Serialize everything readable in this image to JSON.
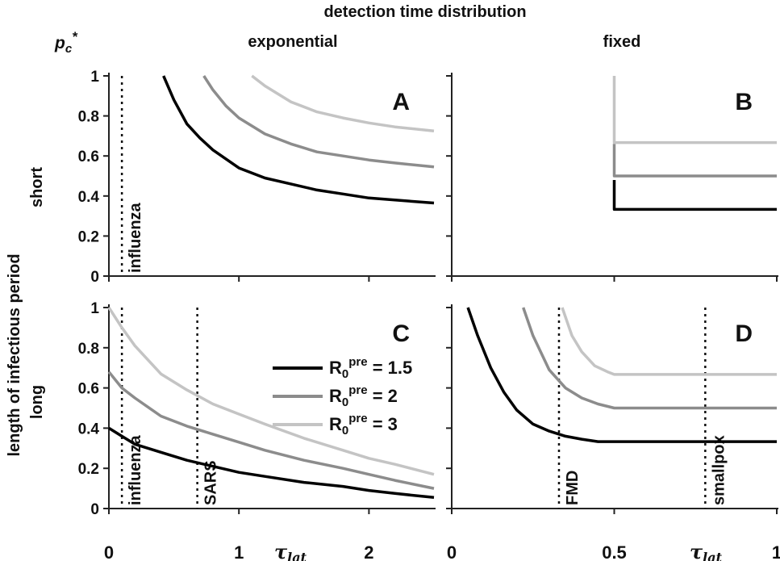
{
  "figure": {
    "header": "detection time distribution",
    "column_labels": {
      "left": "exponential",
      "right": "fixed"
    },
    "y_axis_symbol": "p",
    "y_axis_symbol_sub": "c",
    "y_axis_symbol_sup": "*",
    "side_label": "length of infectious period",
    "row_labels": {
      "top": "short",
      "bottom": "long"
    },
    "x_axis_symbol": "τ",
    "x_axis_symbol_sub": "lat"
  },
  "legend": {
    "symbol": "R",
    "symbol_sub": "0",
    "symbol_sup": "pre",
    "entries": [
      {
        "label": " = 1.5",
        "color": "#000000"
      },
      {
        "label": " = 2",
        "color": "#8c8c8c"
      },
      {
        "label": " = 3",
        "color": "#c4c4c4"
      }
    ]
  },
  "colors": {
    "r15": "#000000",
    "r2": "#8c8c8c",
    "r3": "#c4c4c4",
    "axis": "#222222"
  },
  "chart_data": [
    {
      "panel": "A",
      "type": "line",
      "xlim": [
        0,
        2.5
      ],
      "ylim": [
        0,
        1
      ],
      "yticks": [
        "0",
        "0.2",
        "0.4",
        "0.6",
        "0.8",
        "1"
      ],
      "xticks": [],
      "series": [
        {
          "name": "R0pre = 1.5",
          "color": "#000000",
          "x": [
            0.42,
            0.5,
            0.6,
            0.7,
            0.8,
            1.0,
            1.2,
            1.4,
            1.6,
            1.8,
            2.0,
            2.2,
            2.5
          ],
          "y": [
            1.0,
            0.88,
            0.76,
            0.69,
            0.63,
            0.54,
            0.49,
            0.46,
            0.43,
            0.41,
            0.39,
            0.38,
            0.365
          ]
        },
        {
          "name": "R0pre = 2",
          "color": "#8c8c8c",
          "x": [
            0.73,
            0.8,
            0.9,
            1.0,
            1.2,
            1.4,
            1.6,
            1.8,
            2.0,
            2.2,
            2.5
          ],
          "y": [
            1.0,
            0.93,
            0.85,
            0.79,
            0.71,
            0.66,
            0.62,
            0.6,
            0.58,
            0.565,
            0.545
          ]
        },
        {
          "name": "R0pre = 3",
          "color": "#c4c4c4",
          "x": [
            1.1,
            1.2,
            1.4,
            1.6,
            1.8,
            2.0,
            2.2,
            2.5
          ],
          "y": [
            1.0,
            0.95,
            0.87,
            0.82,
            0.79,
            0.765,
            0.745,
            0.725
          ]
        }
      ],
      "vlines": [
        {
          "x": 0.1,
          "label": "influenza"
        }
      ]
    },
    {
      "panel": "B",
      "type": "line",
      "xlim": [
        0,
        1
      ],
      "ylim": [
        0,
        1
      ],
      "yticks": [],
      "xticks": [],
      "series": [
        {
          "name": "R0pre = 1.5",
          "color": "#000000",
          "x": [
            0.5,
            0.5,
            1.0
          ],
          "y": [
            0.48,
            0.333,
            0.333
          ]
        },
        {
          "name": "R0pre = 2",
          "color": "#8c8c8c",
          "x": [
            0.5,
            0.5,
            1.0
          ],
          "y": [
            0.66,
            0.5,
            0.5
          ]
        },
        {
          "name": "R0pre = 3",
          "color": "#c4c4c4",
          "x": [
            0.5,
            0.5,
            1.0
          ],
          "y": [
            1.0,
            0.667,
            0.667
          ]
        }
      ],
      "vlines": []
    },
    {
      "panel": "C",
      "type": "line",
      "xlim": [
        0,
        2.5
      ],
      "ylim": [
        0,
        1
      ],
      "yticks": [
        "0",
        "0.2",
        "0.4",
        "0.6",
        "0.8",
        "1"
      ],
      "xticks": [
        "0",
        "1",
        "2"
      ],
      "series": [
        {
          "name": "R0pre = 1.5",
          "color": "#000000",
          "x": [
            0.0,
            0.1,
            0.2,
            0.4,
            0.6,
            0.8,
            1.0,
            1.2,
            1.5,
            1.8,
            2.0,
            2.2,
            2.5
          ],
          "y": [
            0.4,
            0.36,
            0.32,
            0.28,
            0.24,
            0.21,
            0.18,
            0.16,
            0.13,
            0.11,
            0.09,
            0.075,
            0.055
          ]
        },
        {
          "name": "R0pre = 2",
          "color": "#8c8c8c",
          "x": [
            0.0,
            0.1,
            0.2,
            0.4,
            0.6,
            0.8,
            1.0,
            1.2,
            1.5,
            1.8,
            2.0,
            2.2,
            2.5
          ],
          "y": [
            0.68,
            0.6,
            0.55,
            0.46,
            0.41,
            0.37,
            0.33,
            0.29,
            0.24,
            0.2,
            0.17,
            0.14,
            0.1
          ]
        },
        {
          "name": "R0pre = 3",
          "color": "#c4c4c4",
          "x": [
            0.0,
            0.1,
            0.2,
            0.4,
            0.6,
            0.8,
            1.0,
            1.2,
            1.5,
            1.8,
            2.0,
            2.2,
            2.5
          ],
          "y": [
            1.0,
            0.9,
            0.81,
            0.67,
            0.59,
            0.52,
            0.47,
            0.42,
            0.35,
            0.29,
            0.25,
            0.22,
            0.17
          ]
        }
      ],
      "vlines": [
        {
          "x": 0.1,
          "label": "influenza"
        },
        {
          "x": 0.68,
          "label": "SARS"
        }
      ]
    },
    {
      "panel": "D",
      "type": "line",
      "xlim": [
        0,
        1
      ],
      "ylim": [
        0,
        1
      ],
      "yticks": [],
      "xticks": [
        "0",
        "0.5",
        "1"
      ],
      "series": [
        {
          "name": "R0pre = 1.5",
          "color": "#000000",
          "x": [
            0.05,
            0.08,
            0.12,
            0.16,
            0.2,
            0.25,
            0.3,
            0.35,
            0.4,
            0.45,
            1.0
          ],
          "y": [
            1.0,
            0.86,
            0.7,
            0.58,
            0.49,
            0.42,
            0.385,
            0.36,
            0.345,
            0.333,
            0.333
          ]
        },
        {
          "name": "R0pre = 2",
          "color": "#8c8c8c",
          "x": [
            0.22,
            0.25,
            0.3,
            0.35,
            0.4,
            0.45,
            0.5,
            1.0
          ],
          "y": [
            1.0,
            0.86,
            0.69,
            0.6,
            0.55,
            0.52,
            0.5,
            0.5
          ]
        },
        {
          "name": "R0pre = 3",
          "color": "#c4c4c4",
          "x": [
            0.34,
            0.37,
            0.4,
            0.44,
            0.48,
            0.5,
            1.0
          ],
          "y": [
            1.0,
            0.86,
            0.78,
            0.71,
            0.68,
            0.667,
            0.667
          ]
        }
      ],
      "vlines": [
        {
          "x": 0.33,
          "label": "FMD"
        },
        {
          "x": 0.78,
          "label": "smallpox"
        }
      ]
    }
  ]
}
